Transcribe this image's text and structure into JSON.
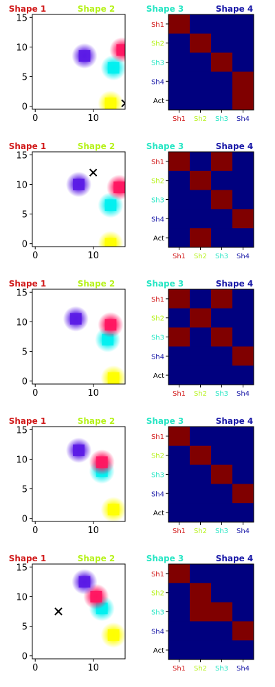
{
  "shape_labels": [
    {
      "text": "Shape 1",
      "color": "#d11a1a"
    },
    {
      "text": "Shape 2",
      "color": "#b6f21a"
    },
    {
      "text": "Shape 3",
      "color": "#27e6c4"
    },
    {
      "text": "Shape 4",
      "color": "#1a1aa8"
    }
  ],
  "chart_data": [
    {
      "type": "heatmap",
      "xlim": [
        -0.5,
        15.5
      ],
      "ylim": [
        15.5,
        -0.5
      ],
      "xticks": [
        0,
        10
      ],
      "yticks": [
        0,
        5,
        10,
        15
      ],
      "marker": {
        "x": 15.5,
        "y": 0.5
      },
      "blobs": [
        {
          "x": 13,
          "y": 0.5,
          "color": "#ffff00"
        },
        {
          "x": 13.5,
          "y": 6.5,
          "color": "#00f0f0"
        },
        {
          "x": 15,
          "y": 9.5,
          "color": "#ff1560"
        },
        {
          "x": 8.5,
          "y": 8.5,
          "color": "#5a1ae6"
        }
      ],
      "matrix": {
        "rows": [
          "Sh1",
          "Sh2",
          "Sh3",
          "Sh4",
          "Act"
        ],
        "cols": [
          "Sh1",
          "Sh2",
          "Sh3",
          "Sh4"
        ],
        "cells": [
          [
            1,
            0,
            0,
            0
          ],
          [
            0,
            1,
            0,
            0
          ],
          [
            0,
            0,
            1,
            0
          ],
          [
            0,
            0,
            0,
            1
          ],
          [
            0,
            0,
            0,
            1
          ]
        ]
      }
    },
    {
      "type": "heatmap",
      "xlim": [
        -0.5,
        15.5
      ],
      "ylim": [
        15.5,
        -0.5
      ],
      "xticks": [
        0,
        10
      ],
      "yticks": [
        0,
        5,
        10,
        15
      ],
      "marker": {
        "x": 10,
        "y": 12
      },
      "blobs": [
        {
          "x": 13,
          "y": 0,
          "color": "#ffff00"
        },
        {
          "x": 13,
          "y": 6.5,
          "color": "#00f0f0"
        },
        {
          "x": 14.5,
          "y": 9.5,
          "color": "#ff1560"
        },
        {
          "x": 7.5,
          "y": 10,
          "color": "#5a1ae6"
        }
      ],
      "matrix": {
        "rows": [
          "Sh1",
          "Sh2",
          "Sh3",
          "Sh4",
          "Act"
        ],
        "cols": [
          "Sh1",
          "Sh2",
          "Sh3",
          "Sh4"
        ],
        "cells": [
          [
            1,
            0,
            1,
            0
          ],
          [
            0,
            1,
            0,
            0
          ],
          [
            0,
            0,
            1,
            0
          ],
          [
            0,
            0,
            0,
            1
          ],
          [
            0,
            1,
            0,
            0
          ]
        ]
      }
    },
    {
      "type": "heatmap",
      "xlim": [
        -0.5,
        15.5
      ],
      "ylim": [
        15.5,
        -0.5
      ],
      "xticks": [
        0,
        10
      ],
      "yticks": [
        0,
        5,
        10,
        15
      ],
      "marker": null,
      "blobs": [
        {
          "x": 13.5,
          "y": 0.5,
          "color": "#ffff00"
        },
        {
          "x": 12.5,
          "y": 7,
          "color": "#00f0f0"
        },
        {
          "x": 13,
          "y": 9.5,
          "color": "#ff1560"
        },
        {
          "x": 7,
          "y": 10.5,
          "color": "#5a1ae6"
        }
      ],
      "matrix": {
        "rows": [
          "Sh1",
          "Sh2",
          "Sh3",
          "Sh4",
          "Act"
        ],
        "cols": [
          "Sh1",
          "Sh2",
          "Sh3",
          "Sh4"
        ],
        "cells": [
          [
            1,
            0,
            1,
            0
          ],
          [
            0,
            1,
            0,
            0
          ],
          [
            1,
            0,
            1,
            0
          ],
          [
            0,
            0,
            0,
            1
          ],
          [
            0,
            0,
            0,
            0
          ]
        ]
      }
    },
    {
      "type": "heatmap",
      "xlim": [
        -0.5,
        15.5
      ],
      "ylim": [
        15.5,
        -0.5
      ],
      "xticks": [
        0,
        10
      ],
      "yticks": [
        0,
        5,
        10,
        15
      ],
      "marker": null,
      "blobs": [
        {
          "x": 13.5,
          "y": 1.5,
          "color": "#ffff00"
        },
        {
          "x": 11.5,
          "y": 8,
          "color": "#00f0f0"
        },
        {
          "x": 11.5,
          "y": 9.5,
          "color": "#ff1560"
        },
        {
          "x": 7.5,
          "y": 11.5,
          "color": "#5a1ae6"
        }
      ],
      "matrix": {
        "rows": [
          "Sh1",
          "Sh2",
          "Sh3",
          "Sh4",
          "Act"
        ],
        "cols": [
          "Sh1",
          "Sh2",
          "Sh3",
          "Sh4"
        ],
        "cells": [
          [
            1,
            0,
            0,
            0
          ],
          [
            0,
            1,
            0,
            0
          ],
          [
            0,
            0,
            1,
            0
          ],
          [
            0,
            0,
            0,
            1
          ],
          [
            0,
            0,
            0,
            0
          ]
        ]
      }
    },
    {
      "type": "heatmap",
      "xlim": [
        -0.5,
        15.5
      ],
      "ylim": [
        15.5,
        -0.5
      ],
      "xticks": [
        0,
        10
      ],
      "yticks": [
        0,
        5,
        10,
        15
      ],
      "marker": {
        "x": 4,
        "y": 7.5
      },
      "blobs": [
        {
          "x": 13.5,
          "y": 3.5,
          "color": "#ffff00"
        },
        {
          "x": 11.5,
          "y": 8,
          "color": "#00f0f0"
        },
        {
          "x": 10.5,
          "y": 10,
          "color": "#ff1560"
        },
        {
          "x": 8.5,
          "y": 12.5,
          "color": "#5a1ae6"
        }
      ],
      "matrix": {
        "rows": [
          "Sh1",
          "Sh2",
          "Sh3",
          "Sh4",
          "Act"
        ],
        "cols": [
          "Sh1",
          "Sh2",
          "Sh3",
          "Sh4"
        ],
        "cells": [
          [
            1,
            0,
            0,
            0
          ],
          [
            0,
            1,
            0,
            0
          ],
          [
            0,
            1,
            1,
            0
          ],
          [
            0,
            0,
            0,
            1
          ],
          [
            0,
            0,
            0,
            0
          ]
        ]
      }
    }
  ],
  "colors": {
    "hot": "#800000",
    "cold": "#00007f",
    "axis": "#000000"
  }
}
